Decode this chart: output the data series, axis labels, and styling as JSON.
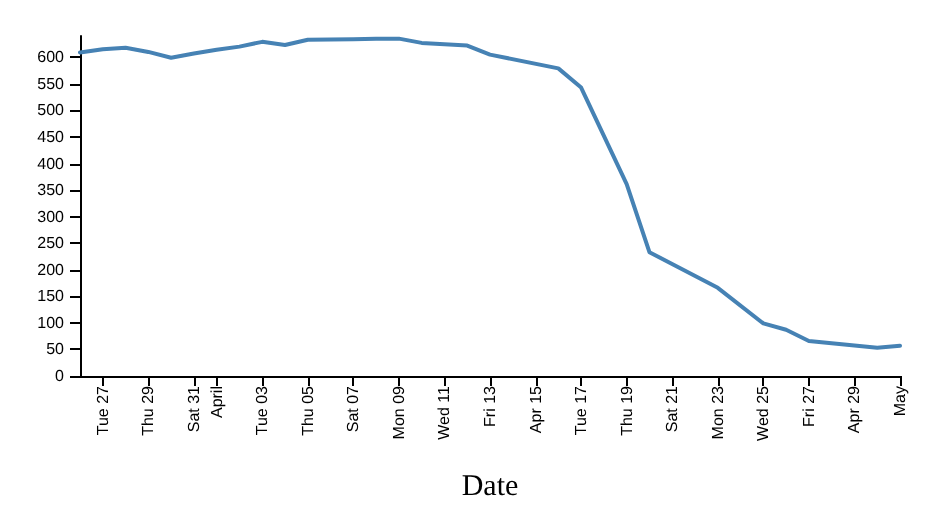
{
  "chart_data": {
    "type": "line",
    "xlabel": "Date",
    "x": [
      "--03-26",
      "--03-27",
      "--03-28",
      "--03-29",
      "--03-30",
      "--03-31",
      "--04-01",
      "--04-02",
      "--04-03",
      "--04-04",
      "--04-05",
      "--04-07",
      "--04-08",
      "--04-09",
      "--04-10",
      "--04-12",
      "--04-13",
      "--04-16",
      "--04-17",
      "--04-19",
      "--04-20",
      "--04-23",
      "--04-25",
      "--04-26",
      "--04-27",
      "--04-30",
      "--05-01"
    ],
    "series": [
      {
        "color": "#4682b4",
        "values": [
          609,
          615,
          618,
          610,
          599,
          607,
          614,
          620,
          629,
          623,
          633,
          634,
          635,
          635,
          627,
          622,
          605,
          579,
          543,
          361,
          233,
          166,
          99,
          87,
          66,
          53,
          57
        ]
      }
    ],
    "xlim": [
      "--03-26",
      "--05-01"
    ],
    "xticks": [
      {
        "value": "--03-27",
        "label": "Tue 27"
      },
      {
        "value": "--03-29",
        "label": "Thu 29"
      },
      {
        "value": "--03-31",
        "label": "Sat 31"
      },
      {
        "value": "--04-01",
        "label": "April"
      },
      {
        "value": "--04-03",
        "label": "Tue 03"
      },
      {
        "value": "--04-05",
        "label": "Thu 05"
      },
      {
        "value": "--04-07",
        "label": "Sat 07"
      },
      {
        "value": "--04-09",
        "label": "Mon 09"
      },
      {
        "value": "--04-11",
        "label": "Wed 11"
      },
      {
        "value": "--04-13",
        "label": "Fri 13"
      },
      {
        "value": "--04-15",
        "label": "Apr 15"
      },
      {
        "value": "--04-17",
        "label": "Tue 17"
      },
      {
        "value": "--04-19",
        "label": "Thu 19"
      },
      {
        "value": "--04-21",
        "label": "Sat 21"
      },
      {
        "value": "--04-23",
        "label": "Mon 23"
      },
      {
        "value": "--04-25",
        "label": "Wed 25"
      },
      {
        "value": "--04-27",
        "label": "Fri 27"
      },
      {
        "value": "--04-29",
        "label": "Apr 29"
      },
      {
        "value": "--05-01",
        "label": "May"
      }
    ],
    "ylim": [
      0,
      640
    ],
    "yticks": [
      0,
      50,
      100,
      150,
      200,
      250,
      300,
      350,
      400,
      450,
      500,
      550,
      600
    ],
    "grid": false,
    "marker": "none",
    "line_style": "solid"
  }
}
